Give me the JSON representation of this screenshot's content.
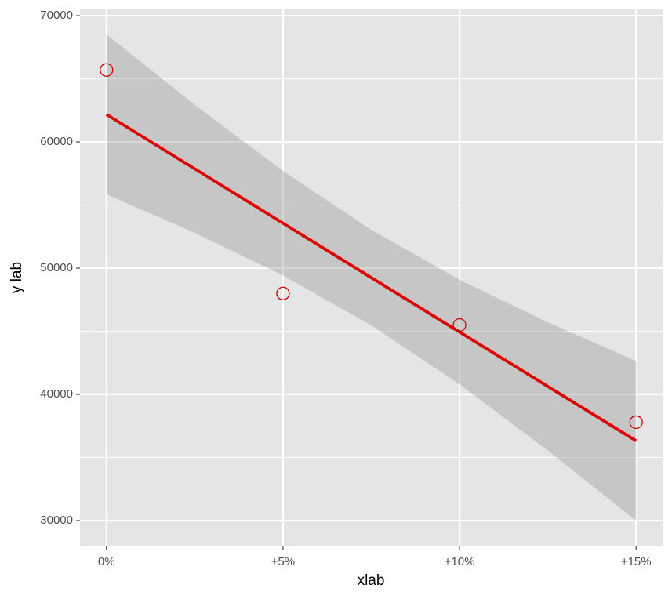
{
  "chart_data": {
    "type": "scatter",
    "x_label": "xlab",
    "y_label": "y lab",
    "x": [
      0,
      5,
      10,
      15
    ],
    "values": [
      65700,
      48000,
      45500,
      37800
    ],
    "color": "#cc0000",
    "fit": {
      "x": [
        0,
        15
      ],
      "values": [
        62180,
        36320
      ],
      "color": "#dd0000"
    },
    "ribbon": {
      "x": [
        0,
        2.5,
        5,
        7.5,
        10,
        12.5,
        15
      ],
      "upper": [
        68510,
        62945,
        57703,
        53033,
        49083,
        45705,
        42650
      ],
      "lower": [
        55850,
        52795,
        49417,
        45467,
        40797,
        35555,
        29990
      ],
      "color": "#999999"
    },
    "xlim": [
      -0.75,
      15.75
    ],
    "ylim": [
      27950,
      70500
    ],
    "xticks": [
      {
        "value": 0,
        "label": "0%"
      },
      {
        "value": 5,
        "label": "+5%"
      },
      {
        "value": 10,
        "label": "+10%"
      },
      {
        "value": 15,
        "label": "+15%"
      }
    ],
    "yticks": [
      30000,
      40000,
      50000,
      60000,
      70000
    ],
    "minor_yticks": [
      35000,
      45000,
      55000,
      65000
    ],
    "grid": true
  }
}
